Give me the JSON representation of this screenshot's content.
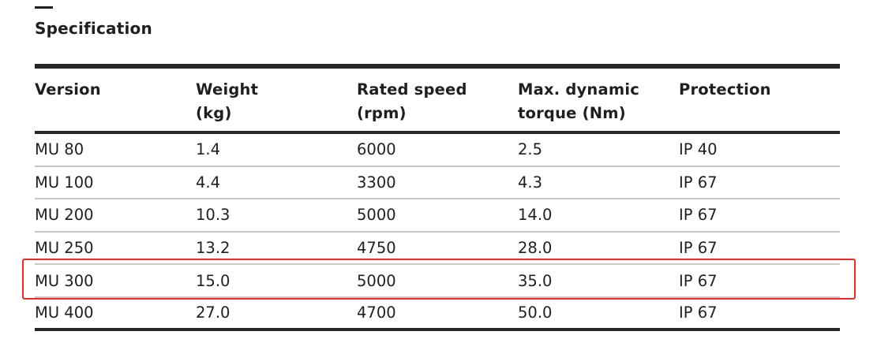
{
  "heading": "Specification",
  "columns": [
    [
      "Version",
      ""
    ],
    [
      "Weight",
      "(kg)"
    ],
    [
      "Rated speed",
      "(rpm)"
    ],
    [
      "Max. dynamic",
      "torque (Nm)"
    ],
    [
      "Protection",
      ""
    ]
  ],
  "rows": [
    [
      "MU 80",
      "1.4",
      "6000",
      "2.5",
      "IP 40"
    ],
    [
      "MU 100",
      "4.4",
      "3300",
      "4.3",
      "IP 67"
    ],
    [
      "MU 200",
      "10.3",
      "5000",
      "14.0",
      "IP 67"
    ],
    [
      "MU 250",
      "13.2",
      "4750",
      "28.0",
      "IP 67"
    ],
    [
      "MU 300",
      "15.0",
      "5000",
      "35.0",
      "IP 67"
    ],
    [
      "MU 400",
      "27.0",
      "4700",
      "50.0",
      "IP 67"
    ]
  ],
  "highlighted_row": "MU 300",
  "highlight_color": "#ee2a24"
}
